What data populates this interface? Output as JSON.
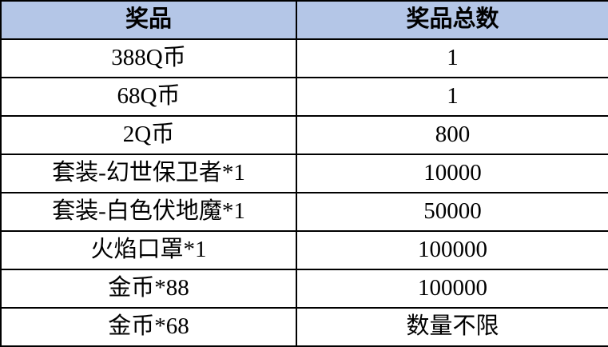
{
  "table": {
    "columns": [
      {
        "label": "奖品"
      },
      {
        "label": "奖品总数"
      }
    ],
    "rows": [
      {
        "prize": "388Q币",
        "count": "1"
      },
      {
        "prize": "68Q币",
        "count": "1"
      },
      {
        "prize": "2Q币",
        "count": "800"
      },
      {
        "prize": "套装-幻世保卫者*1",
        "count": "10000"
      },
      {
        "prize": "套装-白色伏地魔*1",
        "count": "50000"
      },
      {
        "prize": "火焰口罩*1",
        "count": "100000"
      },
      {
        "prize": "金币*88",
        "count": "100000"
      },
      {
        "prize": "金币*68",
        "count": "数量不限"
      }
    ]
  },
  "colors": {
    "header_bg": "#b4c6e7",
    "border": "#000000",
    "text": "#000000",
    "row_bg": "#ffffff"
  }
}
